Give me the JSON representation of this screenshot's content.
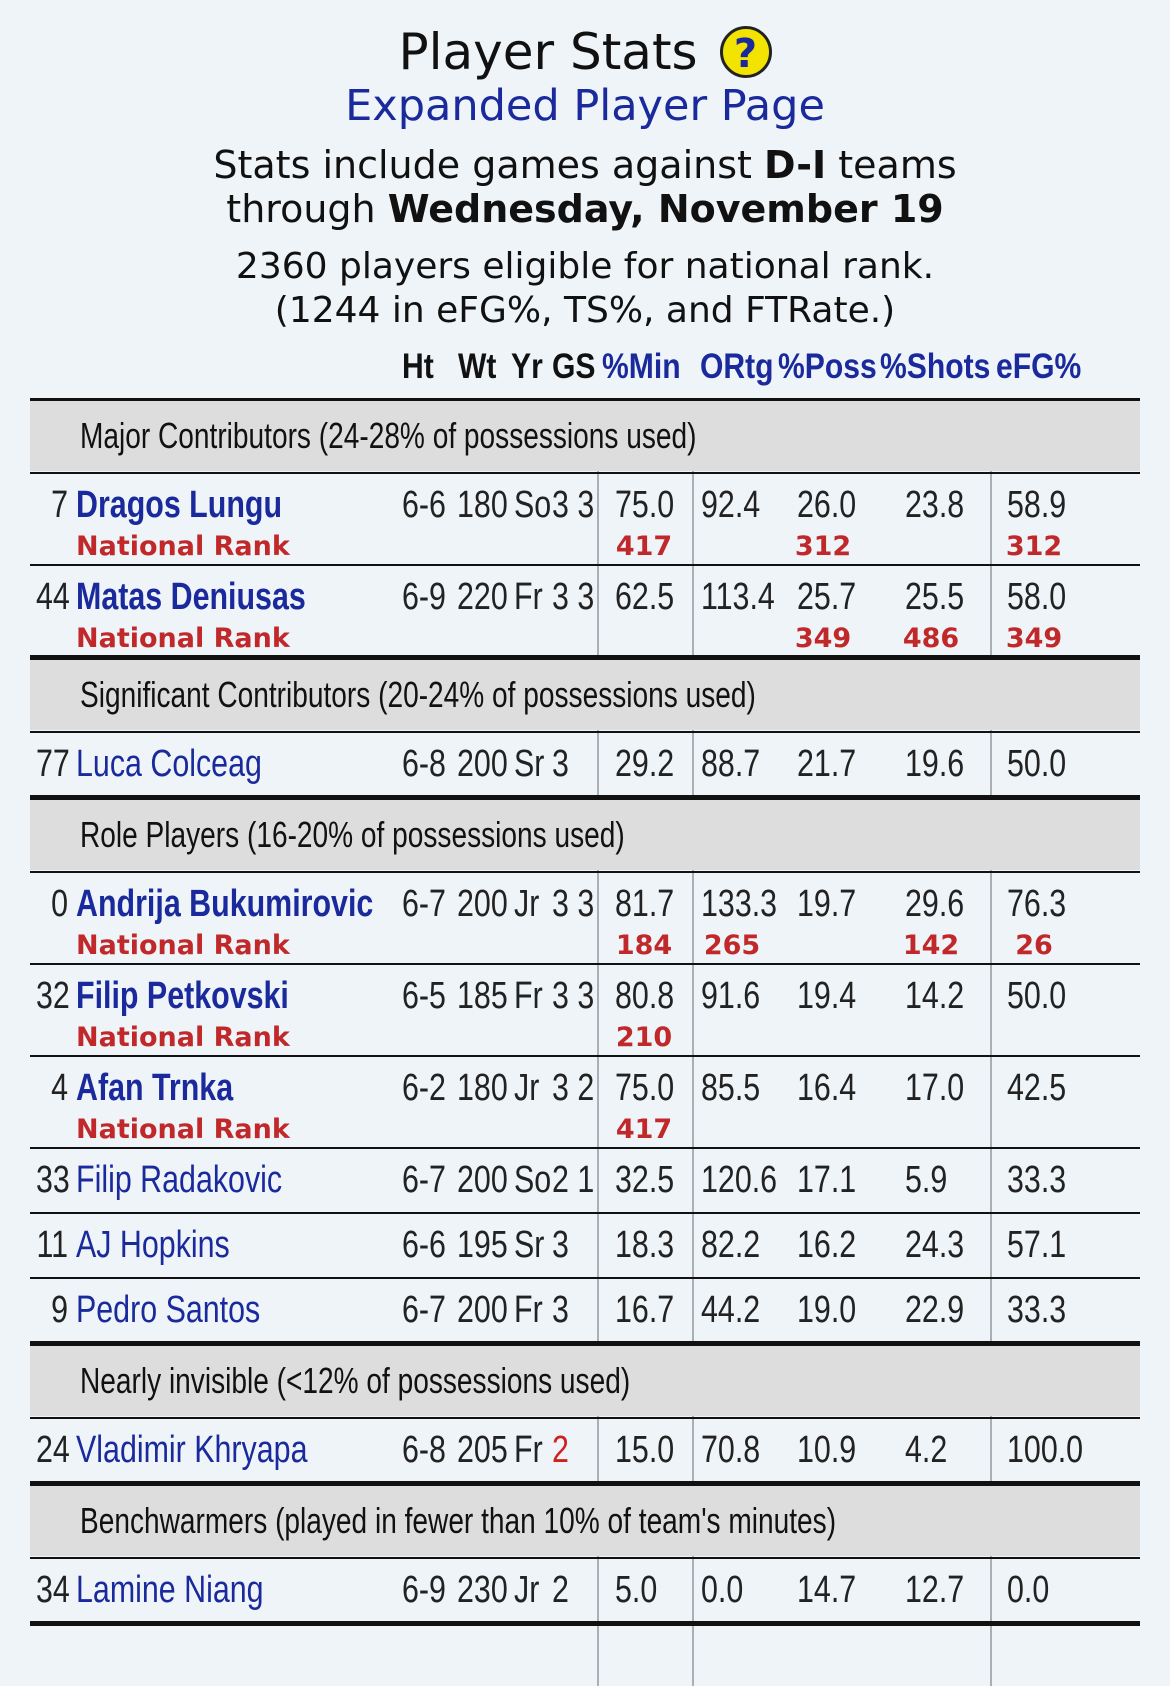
{
  "header": {
    "title": "Player Stats",
    "help_icon": "?",
    "subtitle": "Expanded Player Page",
    "stats_line1_pre": "Stats include games against ",
    "stats_line1_bold": "D-I",
    "stats_line1_post": " teams",
    "stats_line2_pre": "through ",
    "stats_line2_bold": "Wednesday, November 19",
    "elig_line1": "2360 players eligible for national rank.",
    "elig_line2": "(1244 in eFG%, TS%, and FTRate.)"
  },
  "columns": [
    "Ht",
    "Wt",
    "Yr",
    "GS",
    "%Min",
    "ORtg",
    "%Poss",
    "%Shots",
    "eFG%"
  ],
  "rank_label": "National Rank",
  "sections": [
    {
      "title": "Major Contributors (24-28% of possessions used)",
      "players": [
        {
          "num": "7",
          "name": "Dragos Lungu",
          "ht": "6-6",
          "wt": "180",
          "yr": "So",
          "gs": "3 3",
          "min": "75.0",
          "ortg": "92.4",
          "poss": "26.0",
          "shots": "23.8",
          "efg": "58.9",
          "ranks": {
            "min": "417",
            "poss": "312",
            "efg": "312"
          }
        },
        {
          "num": "44",
          "name": "Matas Deniusas",
          "ht": "6-9",
          "wt": "220",
          "yr": "Fr",
          "gs": "3 3",
          "min": "62.5",
          "ortg": "113.4",
          "poss": "25.7",
          "shots": "25.5",
          "efg": "58.0",
          "ranks": {
            "poss": "349",
            "shots": "486",
            "efg": "349"
          }
        }
      ]
    },
    {
      "title": "Significant Contributors (20-24% of possessions used)",
      "players": [
        {
          "num": "77",
          "name": "Luca Colceag",
          "ht": "6-8",
          "wt": "200",
          "yr": "Sr",
          "gs": "3",
          "min": "29.2",
          "ortg": "88.7",
          "poss": "21.7",
          "shots": "19.6",
          "efg": "50.0"
        }
      ]
    },
    {
      "title": "Role Players (16-20% of possessions used)",
      "players": [
        {
          "num": "0",
          "name": "Andrija Bukumirovic",
          "ht": "6-7",
          "wt": "200",
          "yr": "Jr",
          "gs": "3 3",
          "min": "81.7",
          "ortg": "133.3",
          "poss": "19.7",
          "shots": "29.6",
          "efg": "76.3",
          "ranks": {
            "min": "184",
            "ortg": "265",
            "shots": "142",
            "efg": "26"
          }
        },
        {
          "num": "32",
          "name": "Filip Petkovski",
          "ht": "6-5",
          "wt": "185",
          "yr": "Fr",
          "gs": "3 3",
          "min": "80.8",
          "ortg": "91.6",
          "poss": "19.4",
          "shots": "14.2",
          "efg": "50.0",
          "ranks": {
            "min": "210"
          }
        },
        {
          "num": "4",
          "name": "Afan Trnka",
          "ht": "6-2",
          "wt": "180",
          "yr": "Jr",
          "gs": "3 2",
          "min": "75.0",
          "ortg": "85.5",
          "poss": "16.4",
          "shots": "17.0",
          "efg": "42.5",
          "ranks": {
            "min": "417"
          }
        },
        {
          "num": "33",
          "name": "Filip Radakovic",
          "ht": "6-7",
          "wt": "200",
          "yr": "So",
          "gs": "2 1",
          "min": "32.5",
          "ortg": "120.6",
          "poss": "17.1",
          "shots": "5.9",
          "efg": "33.3"
        },
        {
          "num": "11",
          "name": "AJ Hopkins",
          "ht": "6-6",
          "wt": "195",
          "yr": "Sr",
          "gs": "3",
          "min": "18.3",
          "ortg": "82.2",
          "poss": "16.2",
          "shots": "24.3",
          "efg": "57.1"
        },
        {
          "num": "9",
          "name": "Pedro Santos",
          "ht": "6-7",
          "wt": "200",
          "yr": "Fr",
          "gs": "3",
          "min": "16.7",
          "ortg": "44.2",
          "poss": "19.0",
          "shots": "22.9",
          "efg": "33.3"
        }
      ]
    },
    {
      "title": "Nearly invisible (<12% of possessions used)",
      "players": [
        {
          "num": "24",
          "name": "Vladimir Khryapa",
          "ht": "6-8",
          "wt": "205",
          "yr": "Fr",
          "gs": "2",
          "gs_red": true,
          "min": "15.0",
          "ortg": "70.8",
          "poss": "10.9",
          "shots": "4.2",
          "efg": "100.0"
        }
      ]
    },
    {
      "title": "Benchwarmers (played in fewer than 10% of team's minutes)",
      "players": [
        {
          "num": "34",
          "name": "Lamine Niang",
          "ht": "6-9",
          "wt": "230",
          "yr": "Jr",
          "gs": "2",
          "min": "5.0",
          "ortg": "0.0",
          "poss": "14.7",
          "shots": "12.7",
          "efg": "0.0"
        }
      ]
    }
  ]
}
